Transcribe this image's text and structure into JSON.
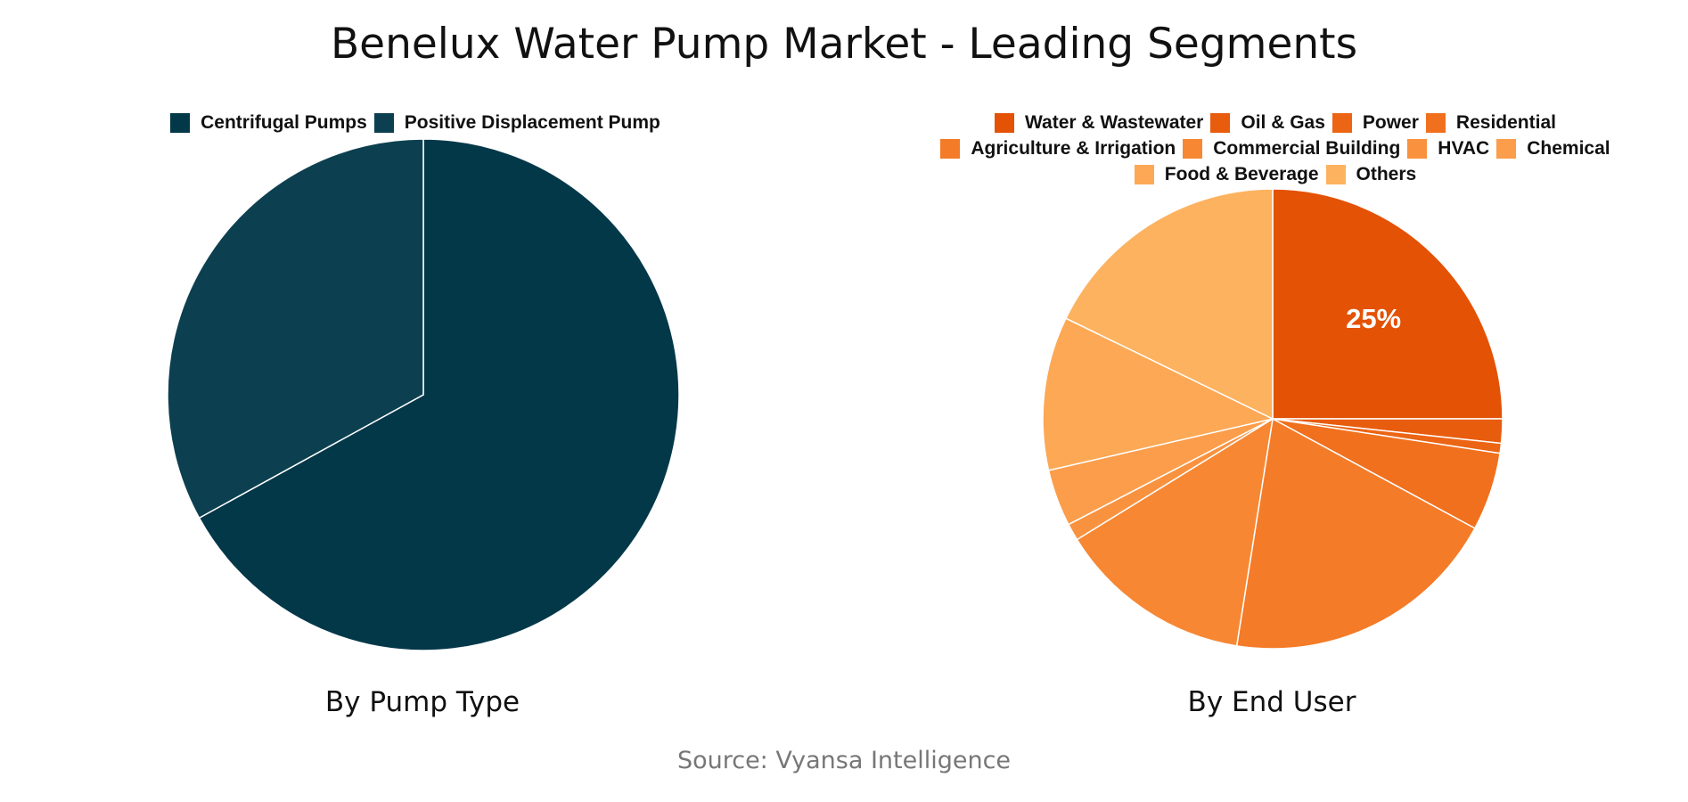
{
  "title": "Benelux Water Pump Market - Leading Segments",
  "source": "Source: Vyansa Intelligence",
  "charts": [
    {
      "subtitle": "By Pump Type",
      "legend": [
        {
          "label": "Centrifugal Pumps",
          "color": "#033849"
        },
        {
          "label": "Positive Displacement Pump",
          "color": "#0c4050"
        }
      ]
    },
    {
      "subtitle": "By End User",
      "label_shown": "25%",
      "legend": [
        {
          "label": "Water & Wastewater",
          "color": "#e35205"
        },
        {
          "label": "Oil & Gas",
          "color": "#e85c0d"
        },
        {
          "label": "Power",
          "color": "#ec6515"
        },
        {
          "label": "Residential",
          "color": "#f0701e"
        },
        {
          "label": "Agriculture & Irrigation",
          "color": "#f47b28"
        },
        {
          "label": "Commercial Building",
          "color": "#f78733"
        },
        {
          "label": "HVAC",
          "color": "#f9923f"
        },
        {
          "label": "Chemical",
          "color": "#fb9d4a"
        },
        {
          "label": "Food & Beverage",
          "color": "#fca855"
        },
        {
          "label": "Others",
          "color": "#fdb25f"
        }
      ]
    }
  ],
  "chart_data": [
    {
      "type": "pie",
      "title": "By Pump Type",
      "categories": [
        "Centrifugal Pumps",
        "Positive Displacement Pump"
      ],
      "values": [
        67,
        33
      ],
      "colors": [
        "#033849",
        "#0c4050"
      ],
      "legend_position": "top"
    },
    {
      "type": "pie",
      "title": "By End User",
      "categories": [
        "Water & Wastewater",
        "Oil & Gas",
        "Power",
        "Residential",
        "Agriculture & Irrigation",
        "Commercial Building",
        "HVAC",
        "Chemical",
        "Food & Beverage",
        "Others"
      ],
      "values": [
        25,
        1.7,
        0.7,
        5.5,
        19.6,
        13.7,
        1.2,
        4.0,
        10.8,
        17.8
      ],
      "colors": [
        "#e35205",
        "#e85c0d",
        "#ec6515",
        "#f0701e",
        "#f47b28",
        "#f78733",
        "#f9923f",
        "#fb9d4a",
        "#fca855",
        "#fdb25f"
      ],
      "data_labels": [
        "25%"
      ],
      "legend_position": "top"
    }
  ]
}
